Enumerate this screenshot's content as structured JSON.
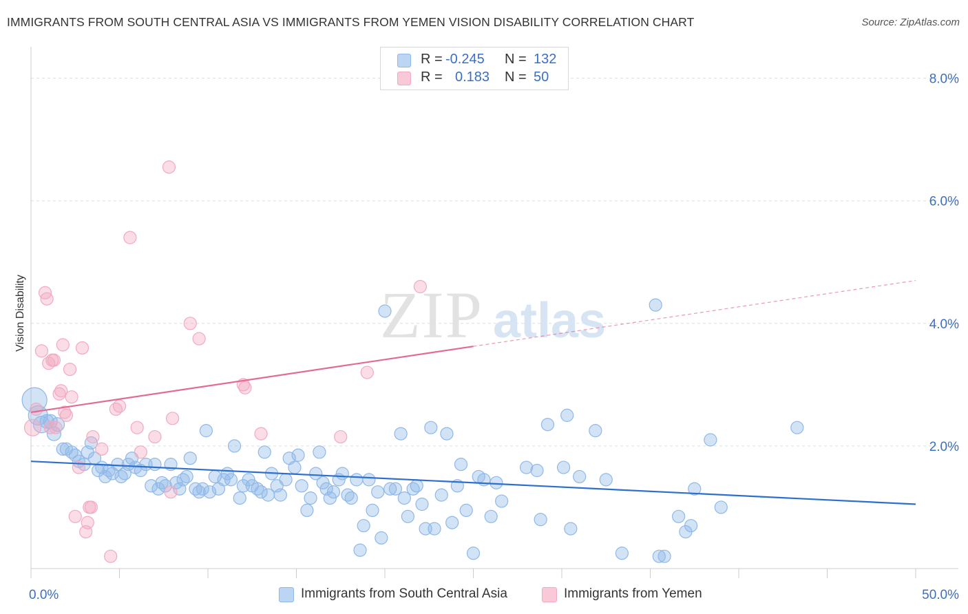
{
  "header": {
    "title": "IMMIGRANTS FROM SOUTH CENTRAL ASIA VS IMMIGRANTS FROM YEMEN VISION DISABILITY CORRELATION CHART",
    "source": "Source: ZipAtlas.com"
  },
  "watermark": {
    "zip": "ZIP",
    "atlas": "atlas"
  },
  "legend": {
    "rows": [
      {
        "r_label": "R =",
        "r_value": "-0.245",
        "n_label": "N =",
        "n_value": "132"
      },
      {
        "r_label": "R =",
        "r_value": "0.183",
        "n_label": "N =",
        "n_value": "50"
      }
    ]
  },
  "chart_data": {
    "type": "scatter",
    "ylabel": "Vision Disability",
    "xlim": [
      0,
      50
    ],
    "ylim": [
      0,
      8.4
    ],
    "x_ticks": [
      0,
      50
    ],
    "x_tick_labels": [
      "0.0%",
      "50.0%"
    ],
    "y_ticks": [
      2,
      4,
      6,
      8
    ],
    "y_tick_labels": [
      "2.0%",
      "4.0%",
      "6.0%",
      "8.0%"
    ],
    "grid": true,
    "legend_position": "top-center",
    "series": [
      {
        "name": "Immigrants from South Central Asia",
        "color": "#8fb8e8",
        "line_color": "#2c6fcc",
        "trend": {
          "x": [
            0,
            50
          ],
          "y": [
            1.75,
            1.05
          ],
          "dashed_from": null
        },
        "points": [
          [
            0.2,
            2.75,
            18
          ],
          [
            0.4,
            2.5,
            14
          ],
          [
            0.6,
            2.35,
            12
          ],
          [
            0.9,
            2.4,
            10
          ],
          [
            1.1,
            2.4,
            10
          ],
          [
            1.3,
            2.2,
            10
          ],
          [
            1.5,
            2.35,
            10
          ],
          [
            1.8,
            1.95,
            9
          ],
          [
            2.0,
            1.95,
            9
          ],
          [
            2.3,
            1.9,
            9
          ],
          [
            2.5,
            1.85,
            9
          ],
          [
            2.7,
            1.75,
            9
          ],
          [
            3.0,
            1.7,
            9
          ],
          [
            3.2,
            1.9,
            9
          ],
          [
            3.4,
            2.05,
            9
          ],
          [
            3.6,
            1.8,
            9
          ],
          [
            3.8,
            1.6,
            9
          ],
          [
            4.0,
            1.65,
            9
          ],
          [
            4.2,
            1.5,
            9
          ],
          [
            4.4,
            1.6,
            9
          ],
          [
            4.6,
            1.55,
            9
          ],
          [
            4.9,
            1.7,
            9
          ],
          [
            5.1,
            1.5,
            9
          ],
          [
            5.3,
            1.55,
            9
          ],
          [
            5.5,
            1.7,
            9
          ],
          [
            5.7,
            1.8,
            9
          ],
          [
            5.9,
            1.65,
            9
          ],
          [
            6.2,
            1.6,
            9
          ],
          [
            6.5,
            1.7,
            9
          ],
          [
            6.8,
            1.35,
            9
          ],
          [
            7.0,
            1.7,
            9
          ],
          [
            7.2,
            1.3,
            9
          ],
          [
            7.4,
            1.4,
            9
          ],
          [
            7.6,
            1.35,
            9
          ],
          [
            7.9,
            1.7,
            9
          ],
          [
            8.2,
            1.4,
            9
          ],
          [
            8.4,
            1.3,
            9
          ],
          [
            8.6,
            1.45,
            9
          ],
          [
            8.8,
            1.5,
            9
          ],
          [
            9.0,
            1.8,
            9
          ],
          [
            9.3,
            1.3,
            9
          ],
          [
            9.5,
            1.25,
            9
          ],
          [
            9.7,
            1.3,
            9
          ],
          [
            9.9,
            2.25,
            9
          ],
          [
            10.1,
            1.25,
            9
          ],
          [
            10.4,
            1.5,
            9
          ],
          [
            10.6,
            1.3,
            9
          ],
          [
            10.9,
            1.45,
            9
          ],
          [
            11.1,
            1.55,
            9
          ],
          [
            11.3,
            1.45,
            9
          ],
          [
            11.5,
            2.0,
            9
          ],
          [
            11.8,
            1.15,
            9
          ],
          [
            12.0,
            1.35,
            9
          ],
          [
            12.3,
            1.45,
            9
          ],
          [
            12.5,
            1.35,
            9
          ],
          [
            12.8,
            1.3,
            9
          ],
          [
            13.0,
            1.25,
            9
          ],
          [
            13.2,
            1.9,
            9
          ],
          [
            13.4,
            1.2,
            9
          ],
          [
            13.6,
            1.55,
            9
          ],
          [
            13.9,
            1.35,
            9
          ],
          [
            14.1,
            1.2,
            9
          ],
          [
            14.4,
            1.45,
            9
          ],
          [
            14.6,
            1.8,
            9
          ],
          [
            14.9,
            1.65,
            9
          ],
          [
            15.1,
            1.85,
            9
          ],
          [
            15.3,
            1.35,
            9
          ],
          [
            15.6,
            0.95,
            9
          ],
          [
            15.8,
            1.15,
            9
          ],
          [
            16.1,
            1.55,
            9
          ],
          [
            16.3,
            1.9,
            9
          ],
          [
            16.5,
            1.4,
            9
          ],
          [
            16.7,
            1.3,
            9
          ],
          [
            16.9,
            1.15,
            9
          ],
          [
            17.1,
            1.25,
            9
          ],
          [
            17.4,
            1.45,
            9
          ],
          [
            17.6,
            1.55,
            9
          ],
          [
            17.9,
            1.2,
            9
          ],
          [
            18.1,
            1.15,
            9
          ],
          [
            18.4,
            1.45,
            9
          ],
          [
            18.6,
            0.3,
            9
          ],
          [
            18.8,
            0.7,
            9
          ],
          [
            19.1,
            1.45,
            9
          ],
          [
            19.3,
            0.95,
            9
          ],
          [
            19.6,
            1.25,
            9
          ],
          [
            19.8,
            0.5,
            9
          ],
          [
            20.0,
            4.2,
            9
          ],
          [
            20.3,
            1.3,
            9
          ],
          [
            20.6,
            1.3,
            9
          ],
          [
            20.9,
            2.2,
            9
          ],
          [
            21.1,
            1.15,
            9
          ],
          [
            21.3,
            0.85,
            9
          ],
          [
            21.6,
            1.3,
            9
          ],
          [
            21.8,
            1.35,
            9
          ],
          [
            22.1,
            1.05,
            9
          ],
          [
            22.3,
            0.65,
            9
          ],
          [
            22.6,
            2.3,
            9
          ],
          [
            22.8,
            0.65,
            9
          ],
          [
            23.2,
            1.2,
            9
          ],
          [
            23.5,
            2.2,
            9
          ],
          [
            23.8,
            0.75,
            9
          ],
          [
            24.1,
            1.35,
            9
          ],
          [
            24.3,
            1.7,
            9
          ],
          [
            24.6,
            0.95,
            9
          ],
          [
            25.0,
            0.25,
            9
          ],
          [
            25.3,
            1.5,
            9
          ],
          [
            25.6,
            1.45,
            9
          ],
          [
            26.0,
            0.85,
            9
          ],
          [
            26.3,
            1.4,
            9
          ],
          [
            26.6,
            1.1,
            9
          ],
          [
            28.0,
            1.65,
            9
          ],
          [
            28.6,
            1.6,
            9
          ],
          [
            28.8,
            0.8,
            9
          ],
          [
            29.2,
            2.35,
            9
          ],
          [
            30.1,
            1.65,
            9
          ],
          [
            30.3,
            2.5,
            9
          ],
          [
            30.5,
            0.65,
            9
          ],
          [
            31.0,
            1.5,
            9
          ],
          [
            31.9,
            2.25,
            9
          ],
          [
            32.5,
            1.45,
            9
          ],
          [
            33.4,
            0.25,
            9
          ],
          [
            35.3,
            4.3,
            9
          ],
          [
            35.5,
            0.2,
            9
          ],
          [
            35.8,
            0.2,
            9
          ],
          [
            36.6,
            0.85,
            9
          ],
          [
            37.0,
            0.6,
            9
          ],
          [
            37.3,
            0.7,
            9
          ],
          [
            37.5,
            1.3,
            9
          ],
          [
            38.4,
            2.1,
            9
          ],
          [
            39.0,
            1.0,
            9
          ],
          [
            43.3,
            2.3,
            9
          ]
        ]
      },
      {
        "name": "Immigrants from Yemen",
        "color": "#f3a9c0",
        "line_color": "#e36b93",
        "trend": {
          "x": [
            0,
            50
          ],
          "y": [
            2.55,
            4.7
          ],
          "dashed_from": 25
        },
        "points": [
          [
            0.1,
            2.3,
            12
          ],
          [
            0.3,
            2.6,
            9
          ],
          [
            0.6,
            3.55,
            9
          ],
          [
            0.8,
            4.5,
            9
          ],
          [
            0.9,
            4.4,
            9
          ],
          [
            1.0,
            3.35,
            9
          ],
          [
            1.1,
            2.3,
            9
          ],
          [
            1.2,
            3.4,
            9
          ],
          [
            1.3,
            3.4,
            9
          ],
          [
            1.4,
            2.3,
            9
          ],
          [
            1.6,
            2.85,
            9
          ],
          [
            1.7,
            2.9,
            9
          ],
          [
            1.8,
            3.65,
            9
          ],
          [
            1.9,
            2.55,
            9
          ],
          [
            2.0,
            2.5,
            9
          ],
          [
            2.2,
            3.25,
            9
          ],
          [
            2.3,
            2.8,
            9
          ],
          [
            2.5,
            0.85,
            9
          ],
          [
            2.7,
            1.65,
            9
          ],
          [
            2.9,
            3.6,
            9
          ],
          [
            3.1,
            0.6,
            9
          ],
          [
            3.2,
            0.75,
            9
          ],
          [
            3.3,
            1.0,
            9
          ],
          [
            3.4,
            1.0,
            9
          ],
          [
            3.5,
            2.15,
            9
          ],
          [
            4.0,
            1.95,
            9
          ],
          [
            4.5,
            0.2,
            9
          ],
          [
            4.8,
            2.6,
            9
          ],
          [
            5.0,
            2.65,
            9
          ],
          [
            5.6,
            5.4,
            9
          ],
          [
            6.0,
            2.3,
            9
          ],
          [
            6.2,
            1.9,
            9
          ],
          [
            7.0,
            2.15,
            9
          ],
          [
            7.8,
            6.55,
            9
          ],
          [
            7.9,
            1.25,
            9
          ],
          [
            8.0,
            2.45,
            9
          ],
          [
            9.0,
            4.0,
            9
          ],
          [
            9.5,
            3.75,
            9
          ],
          [
            12.0,
            3.0,
            9
          ],
          [
            12.1,
            2.95,
            9
          ],
          [
            13.0,
            2.2,
            9
          ],
          [
            17.5,
            2.15,
            9
          ],
          [
            19.0,
            3.2,
            9
          ],
          [
            22.0,
            4.6,
            9
          ]
        ]
      }
    ]
  }
}
